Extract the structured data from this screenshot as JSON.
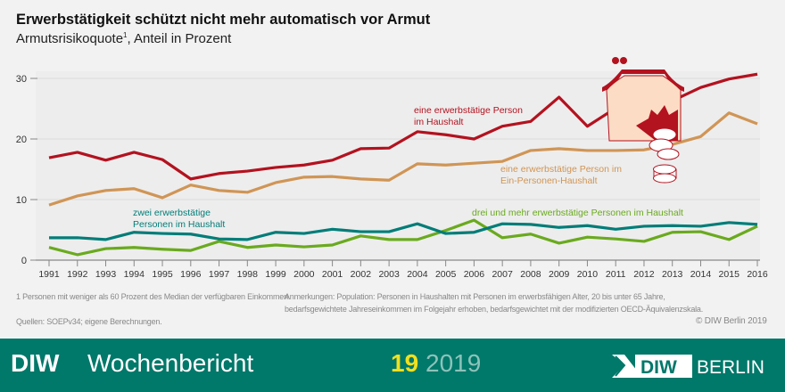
{
  "header": {
    "title": "Erwerbstätigkeit schützt nicht mehr automatisch vor Armut",
    "subtitle": "Armutsrisikoquote",
    "subtitle_sup": "1",
    "subtitle_rest": ", Anteil in Prozent"
  },
  "chart_data": {
    "type": "line",
    "title": "Erwerbstätigkeit schützt nicht mehr automatisch vor Armut",
    "subtitle": "Armutsrisikoquote¹, Anteil in Prozent",
    "ylim": [
      0,
      30
    ],
    "yticks": [
      0,
      10,
      20,
      30
    ],
    "grid": true,
    "x": [
      1991,
      1992,
      1993,
      1994,
      1995,
      1996,
      1997,
      1998,
      1999,
      2000,
      2001,
      2002,
      2003,
      2004,
      2005,
      2006,
      2007,
      2008,
      2009,
      2010,
      2011,
      2012,
      2013,
      2014,
      2015,
      2016
    ],
    "series": [
      {
        "name": "eine erwerbstätige Person im Haushalt",
        "color": "#b3121f",
        "values": [
          16.9,
          17.8,
          16.5,
          17.8,
          16.6,
          13.4,
          14.3,
          14.7,
          15.3,
          15.7,
          16.5,
          18.4,
          18.5,
          21.2,
          20.7,
          20.0,
          22.1,
          22.9,
          26.9,
          22.1,
          25.1,
          24.7,
          26.3,
          28.5,
          29.9,
          30.7
        ]
      },
      {
        "name": "eine erwerbstätige Person im Ein-Personen-Haushalt",
        "color": "#d09555",
        "values": [
          9.1,
          10.6,
          11.5,
          11.8,
          10.3,
          12.4,
          11.5,
          11.2,
          12.8,
          13.7,
          13.8,
          13.4,
          13.2,
          15.9,
          15.7,
          16.0,
          16.3,
          18.1,
          18.4,
          18.1,
          18.1,
          18.2,
          19.1,
          20.4,
          24.3,
          22.5
        ]
      },
      {
        "name": "zwei erwerbstätige Personen im Haushalt",
        "color": "#007d78",
        "values": [
          3.7,
          3.7,
          3.4,
          4.6,
          4.4,
          4.3,
          3.5,
          3.4,
          4.6,
          4.4,
          5.1,
          4.7,
          4.7,
          6.0,
          4.4,
          4.6,
          6.0,
          5.9,
          5.4,
          5.7,
          5.1,
          5.6,
          5.7,
          5.6,
          6.2,
          5.9
        ]
      },
      {
        "name": "drei und mehr erwerbstätige Personen im Haushalt",
        "color": "#6aaa1e",
        "values": [
          2.1,
          0.9,
          1.9,
          2.1,
          1.8,
          1.6,
          3.1,
          2.1,
          2.5,
          2.2,
          2.5,
          4.0,
          3.4,
          3.4,
          4.9,
          6.6,
          3.7,
          4.3,
          2.8,
          3.8,
          3.5,
          3.1,
          4.6,
          4.7,
          3.4,
          5.6
        ]
      }
    ],
    "labels": {
      "red": [
        "eine erwerbstätige Person",
        "im Haushalt"
      ],
      "orange": [
        "eine erwerbstätige Person im",
        "Ein-Personen-Haushalt"
      ],
      "teal": [
        "zwei erwerbstätige",
        "Personen im Haushalt"
      ],
      "green": [
        "drei und mehr erwerbstätige Personen im Haushalt"
      ]
    }
  },
  "notes": {
    "footnote": "1   Personen mit weniger als 60 Prozent des Median der verfügbaren Einkommen.",
    "remarks_1": "Anmerkungen: Population: Personen in Haushalten mit Personen im erwerbsfähigen Alter, 20 bis unter 65 Jahre,",
    "remarks_2": "bedarfsgewichtete Jahreseinkommen im Folgejahr erhoben, bedarfsgewichtet mit der modifizierten OECD-Äquivalenzskala.",
    "sources": "Quellen: SOEPv34; eigene Berechnungen.",
    "copyright": "© DIW Berlin 2019"
  },
  "footer": {
    "brand": "DIW",
    "publication": "Wochenbericht",
    "issue": "19",
    "year": "2019",
    "logo_text": "DIW",
    "logo_city": "BERLIN",
    "bg_color": "#00786a",
    "issue_color": "#f0e020"
  }
}
